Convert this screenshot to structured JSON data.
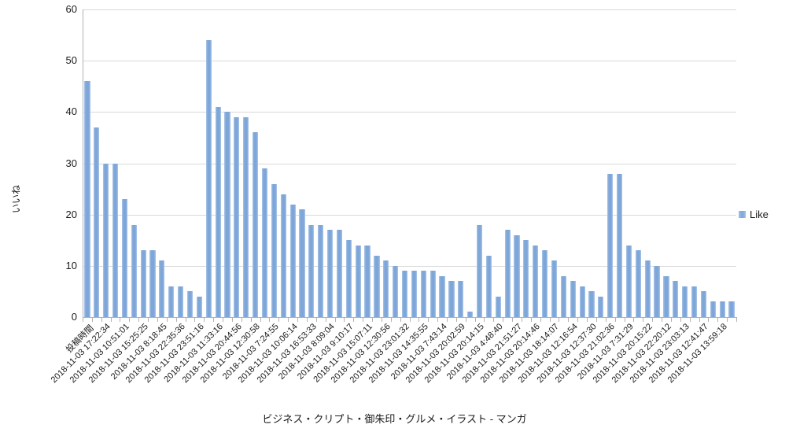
{
  "chart_data": {
    "type": "bar",
    "title": "ビジネス・クリプト・御朱印・グルメ・イラスト - マンガ",
    "xlabel": "",
    "ylabel": "いいね",
    "ylim": [
      0,
      60
    ],
    "yticks": [
      0,
      10,
      20,
      30,
      40,
      50,
      60
    ],
    "grid": true,
    "legend_position": "right",
    "n_categories": 70,
    "x_label_step": 2,
    "x_labels": [
      "投稿時間",
      "2018-11-03 17:22:34",
      "2018-11-03 10:51:01",
      "2018-11-03 15:25:25",
      "2018-11-03 8:18:45",
      "2018-11-03 22:35:36",
      "2018-11-03 23:51:16",
      "2018-11-03 11:33:16",
      "2018-11-03 20:44:56",
      "2018-11-03 12:30:58",
      "2018-11-03 7:24:55",
      "2018-11-03 10:06:14",
      "2018-11-03 16:53:33",
      "2018-11-03 8:09:04",
      "2018-11-03 9:10:17",
      "2018-11-03 15:07:11",
      "2018-11-03 12:30:56",
      "2018-11-03 23:01:32",
      "2018-11-03 14:35:55",
      "2018-11-03 7:43:14",
      "2018-11-03 20:02:59",
      "2018-11-03 20:14:15",
      "2018-11-03 4:48:40",
      "2018-11-03 21:51:27",
      "2018-11-03 20:14:46",
      "2018-11-03 18:14:07",
      "2018-11-03 12:16:54",
      "2018-11-03 12:37:30",
      "2018-11-03 21:02:36",
      "2018-11-03 7:31:29",
      "2018-11-03 20:15:22",
      "2018-11-03 22:20:12",
      "2018-11-03 23:03:13",
      "2018-11-03 12:41:47",
      "2018-11-03 13:59:18"
    ],
    "series": [
      {
        "name": "Like",
        "color": "#7ea6d8",
        "values": [
          46,
          37,
          30,
          30,
          23,
          18,
          13,
          13,
          11,
          6,
          6,
          5,
          4,
          54,
          41,
          40,
          39,
          39,
          36,
          29,
          26,
          24,
          22,
          21,
          18,
          18,
          17,
          17,
          15,
          14,
          14,
          12,
          11,
          10,
          9,
          9,
          9,
          9,
          8,
          7,
          7,
          1,
          18,
          12,
          4,
          17,
          16,
          15,
          14,
          13,
          11,
          8,
          7,
          6,
          5,
          4,
          28,
          28,
          14,
          13,
          11,
          10,
          8,
          7,
          6,
          6,
          5,
          3,
          3,
          3
        ]
      }
    ]
  },
  "colors": {
    "bar": "#7ea6d8",
    "bar_edge": "#adc8e9",
    "gridline": "#d9d9d9",
    "axis": "#b3b3b3",
    "text": "#1a1a1a"
  }
}
